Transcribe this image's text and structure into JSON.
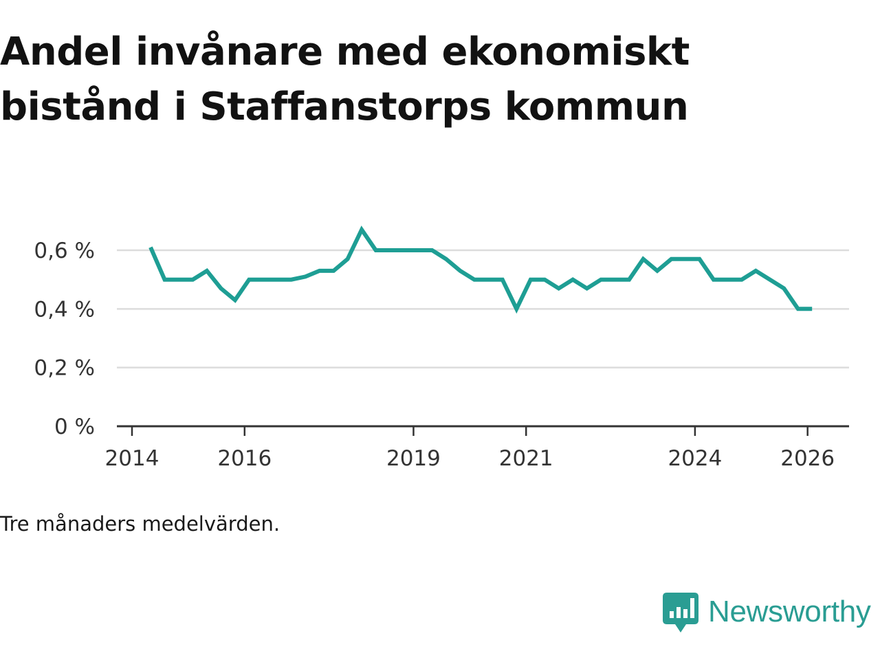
{
  "chart_data": {
    "type": "line",
    "title": "Andel invånare med ekonomiskt bistånd i Staffanstorps kommun",
    "caption": "Tre månaders medelvärden.",
    "xlabel": "",
    "ylabel": "",
    "x_range": [
      2014.0,
      2026.7
    ],
    "ylim": [
      0,
      0.72
    ],
    "y_ticks": [
      {
        "value": 0,
        "label": "0 %"
      },
      {
        "value": 0.2,
        "label": "0,2 %"
      },
      {
        "value": 0.4,
        "label": "0,4 %"
      },
      {
        "value": 0.6,
        "label": "0,6 %"
      }
    ],
    "x_ticks": [
      {
        "value": 2014,
        "label": "2014"
      },
      {
        "value": 2016,
        "label": "2016"
      },
      {
        "value": 2019,
        "label": "2019"
      },
      {
        "value": 2021,
        "label": "2021"
      },
      {
        "value": 2024,
        "label": "2024"
      },
      {
        "value": 2026,
        "label": "2026"
      }
    ],
    "grid": true,
    "series": [
      {
        "name": "Andel invånare med ekonomiskt bistånd",
        "color": "#1e9e94",
        "x": [
          2014.33,
          2014.58,
          2014.83,
          2015.08,
          2015.33,
          2015.58,
          2015.83,
          2016.08,
          2016.33,
          2016.58,
          2016.83,
          2017.08,
          2017.33,
          2017.58,
          2017.83,
          2018.08,
          2018.33,
          2018.58,
          2018.83,
          2019.08,
          2019.33,
          2019.58,
          2019.83,
          2020.08,
          2020.33,
          2020.58,
          2020.83,
          2021.08,
          2021.33,
          2021.58,
          2021.83,
          2022.08,
          2022.33,
          2022.58,
          2022.83,
          2023.08,
          2023.33,
          2023.58,
          2023.83,
          2024.08,
          2024.33,
          2024.58,
          2024.83,
          2025.08,
          2025.33,
          2025.58,
          2025.83,
          2026.08
        ],
        "values": [
          0.61,
          0.5,
          0.5,
          0.5,
          0.53,
          0.47,
          0.43,
          0.5,
          0.5,
          0.5,
          0.5,
          0.51,
          0.53,
          0.53,
          0.57,
          0.67,
          0.6,
          0.6,
          0.6,
          0.6,
          0.6,
          0.57,
          0.53,
          0.5,
          0.5,
          0.5,
          0.4,
          0.5,
          0.5,
          0.47,
          0.5,
          0.47,
          0.5,
          0.5,
          0.5,
          0.57,
          0.53,
          0.57,
          0.57,
          0.57,
          0.5,
          0.5,
          0.5,
          0.53,
          0.5,
          0.47,
          0.4,
          0.4
        ]
      }
    ]
  },
  "logo": {
    "text": "Newsworthy",
    "icon": "newsworthy-chart-icon",
    "color": "#2a9d93"
  }
}
